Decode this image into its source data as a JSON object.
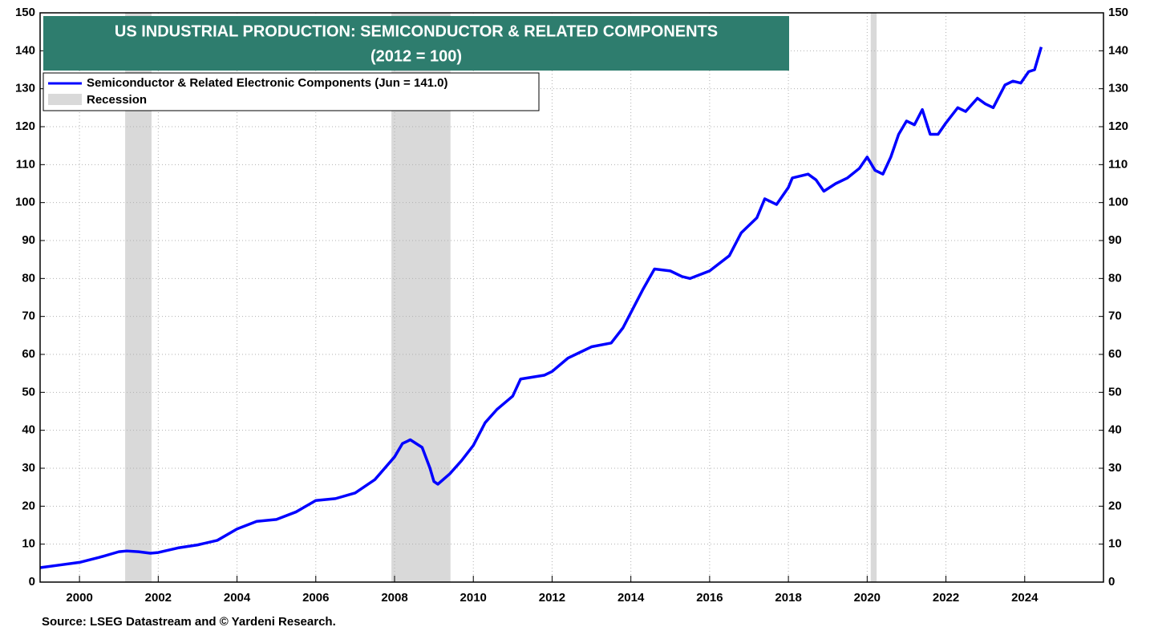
{
  "chart_data": {
    "type": "line",
    "title": "US INDUSTRIAL PRODUCTION: SEMICONDUCTOR & RELATED COMPONENTS",
    "subtitle": "(2012 = 100)",
    "source": "Source: LSEG Datastream and © Yardeni Research.",
    "x": [
      1999.0,
      1999.5,
      2000.0,
      2000.5,
      2001.0,
      2001.2,
      2001.5,
      2001.8,
      2002.0,
      2002.5,
      2003.0,
      2003.5,
      2004.0,
      2004.5,
      2005.0,
      2005.5,
      2006.0,
      2006.5,
      2007.0,
      2007.5,
      2008.0,
      2008.2,
      2008.4,
      2008.7,
      2008.9,
      2009.0,
      2009.1,
      2009.4,
      2009.7,
      2010.0,
      2010.3,
      2010.6,
      2011.0,
      2011.2,
      2011.5,
      2011.8,
      2012.0,
      2012.4,
      2012.7,
      2013.0,
      2013.5,
      2013.8,
      2014.0,
      2014.3,
      2014.6,
      2015.0,
      2015.3,
      2015.5,
      2016.0,
      2016.5,
      2016.8,
      2017.2,
      2017.4,
      2017.7,
      2018.0,
      2018.1,
      2018.5,
      2018.7,
      2018.9,
      2019.2,
      2019.5,
      2019.8,
      2020.0,
      2020.2,
      2020.4,
      2020.6,
      2020.8,
      2021.0,
      2021.2,
      2021.4,
      2021.6,
      2021.8,
      2022.0,
      2022.3,
      2022.5,
      2022.8,
      2023.0,
      2023.2,
      2023.5,
      2023.7,
      2023.9,
      2024.1,
      2024.25,
      2024.42
    ],
    "series": [
      {
        "name": "Semiconductor & Related Electronic Components (Jun  = 141.0)",
        "color": "#0000ff",
        "values": [
          3.8,
          4.5,
          5.2,
          6.5,
          8.0,
          8.2,
          8.0,
          7.6,
          7.8,
          9.0,
          9.8,
          11.0,
          14.0,
          16.0,
          16.5,
          18.5,
          21.5,
          22.0,
          23.5,
          27,
          33,
          36.5,
          37.5,
          35.5,
          30,
          26.5,
          25.8,
          28.5,
          32,
          36,
          42,
          45.5,
          49,
          53.5,
          54,
          54.5,
          55.5,
          59,
          60.5,
          62,
          63,
          67,
          71,
          77,
          82.5,
          82,
          80.5,
          80.0,
          82,
          86,
          92,
          96,
          101,
          99.5,
          104,
          106.5,
          107.5,
          106,
          103,
          105,
          106.5,
          109,
          112,
          108.5,
          107.5,
          112,
          118,
          121.5,
          120.5,
          124.5,
          118,
          118,
          121,
          125,
          124,
          127.5,
          126,
          125,
          131,
          132,
          131.5,
          134.5,
          135,
          141.0
        ]
      }
    ],
    "recession": {
      "name": "Recession",
      "color": "#d9d9d9",
      "spans": [
        [
          2001.16,
          2001.83
        ],
        [
          2007.92,
          2009.42
        ],
        [
          2020.09,
          2020.24
        ]
      ]
    },
    "xlim": [
      1999,
      2026
    ],
    "xticks": [
      2000,
      2002,
      2004,
      2006,
      2008,
      2010,
      2012,
      2014,
      2016,
      2018,
      2020,
      2022,
      2024
    ],
    "ylim": [
      0,
      150
    ],
    "yticks": [
      0,
      10,
      20,
      30,
      40,
      50,
      60,
      70,
      80,
      90,
      100,
      110,
      120,
      130,
      140,
      150
    ],
    "grid": true
  }
}
